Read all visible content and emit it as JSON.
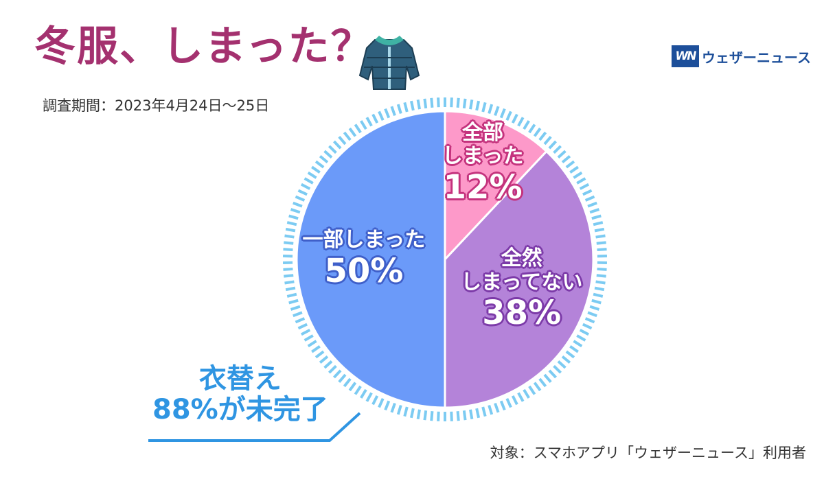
{
  "title": "冬服、しまった？",
  "period": "調査期間：2023年4月24日〜25日",
  "brand": {
    "logo_text": "WN",
    "name": "ウェザーニュース"
  },
  "source": "対象：スマホアプリ「ウェザーニュース」利用者",
  "callout": {
    "line1": "衣替え",
    "line2": "88%が未完了"
  },
  "icons": {
    "title_illustration": "winter-jacket-icon"
  },
  "colors": {
    "title": "#a4316f",
    "callout": "#2f95e2",
    "ring": "#7ccbf2",
    "slices": [
      "#fd99c9",
      "#b483d9",
      "#6b9af9"
    ],
    "label_outlines": [
      "#c4337d",
      "#7c3aa8",
      "#3f5fc9"
    ]
  },
  "chart_data": {
    "type": "pie",
    "slices": [
      {
        "label_lines": [
          "全部",
          "しまった"
        ],
        "value": 12,
        "display": "12%"
      },
      {
        "label_lines": [
          "全然",
          "しまってない"
        ],
        "value": 38,
        "display": "38%"
      },
      {
        "label_lines": [
          "一部しまった"
        ],
        "value": 50,
        "display": "50%"
      }
    ],
    "start": "top",
    "direction": "clockwise",
    "unit": "%"
  }
}
